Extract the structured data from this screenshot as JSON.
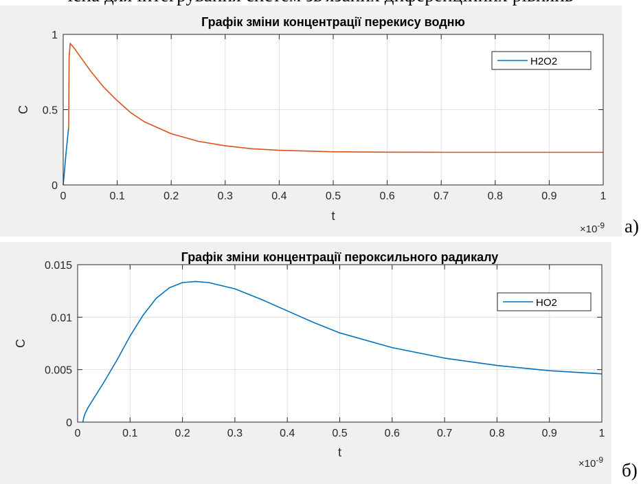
{
  "cut_text": "існа для інтегрування систем зв'язаних диференційних рівнянь",
  "panel_letters": {
    "a": "а)",
    "b": "б)"
  },
  "chart_data": [
    {
      "type": "line",
      "title": "Графік зміни концентрації перекису водню",
      "xlabel": "t",
      "ylabel": "C",
      "x_exponent_label": "×10",
      "x_exponent_power": "-9",
      "xlim": [
        0,
        1
      ],
      "ylim": [
        0,
        1
      ],
      "xticks": [
        0,
        0.1,
        0.2,
        0.3,
        0.4,
        0.5,
        0.6,
        0.7,
        0.8,
        0.9,
        1
      ],
      "xtick_labels": [
        "0",
        "0.1",
        "0.2",
        "0.3",
        "0.4",
        "0.5",
        "0.6",
        "0.7",
        "0.8",
        "0.9",
        "1"
      ],
      "yticks": [
        0,
        0.5,
        1
      ],
      "ytick_labels": [
        "0",
        "0.5",
        "1"
      ],
      "grid": true,
      "legend": {
        "position": "top-right",
        "entries": [
          "H2O2"
        ]
      },
      "colors": [
        "#0072bd",
        "#d95319"
      ],
      "series": [
        {
          "name": "H2O2",
          "x": [
            0,
            0.002,
            0.004,
            0.006,
            0.008,
            0.01
          ],
          "y": [
            0,
            0.08,
            0.16,
            0.24,
            0.31,
            0.38
          ]
        },
        {
          "x": [
            0.01,
            0.011,
            0.013,
            0.02,
            0.03,
            0.05,
            0.075,
            0.1,
            0.125,
            0.15,
            0.2,
            0.25,
            0.3,
            0.35,
            0.4,
            0.45,
            0.5,
            0.6,
            0.7,
            0.8,
            0.9,
            1.0
          ],
          "y": [
            0.38,
            0.85,
            0.94,
            0.91,
            0.86,
            0.76,
            0.65,
            0.56,
            0.48,
            0.42,
            0.34,
            0.29,
            0.26,
            0.24,
            0.23,
            0.225,
            0.22,
            0.218,
            0.217,
            0.217,
            0.217,
            0.217
          ]
        }
      ]
    },
    {
      "type": "line",
      "title": "Графік зміни концентрації пероксильного радикалу",
      "xlabel": "t",
      "ylabel": "C",
      "x_exponent_label": "×10",
      "x_exponent_power": "-9",
      "xlim": [
        0,
        1
      ],
      "ylim": [
        0,
        0.015
      ],
      "xticks": [
        0,
        0.1,
        0.2,
        0.3,
        0.4,
        0.5,
        0.6,
        0.7,
        0.8,
        0.9,
        1
      ],
      "xtick_labels": [
        "0",
        "0.1",
        "0.2",
        "0.3",
        "0.4",
        "0.5",
        "0.6",
        "0.7",
        "0.8",
        "0.9",
        "1"
      ],
      "yticks": [
        0,
        0.005,
        0.01,
        0.015
      ],
      "ytick_labels": [
        "0",
        "0.005",
        "0.01",
        "0.015"
      ],
      "grid": true,
      "legend": {
        "position": "top-right",
        "entries": [
          "HO2"
        ]
      },
      "colors": [
        "#0072bd"
      ],
      "series": [
        {
          "name": "HO2",
          "x": [
            0.01,
            0.012,
            0.015,
            0.02,
            0.03,
            0.05,
            0.075,
            0.1,
            0.125,
            0.15,
            0.175,
            0.2,
            0.225,
            0.25,
            0.3,
            0.35,
            0.4,
            0.45,
            0.5,
            0.6,
            0.7,
            0.8,
            0.9,
            1.0
          ],
          "y": [
            0,
            0.0005,
            0.0009,
            0.0014,
            0.0022,
            0.0038,
            0.0059,
            0.0082,
            0.0102,
            0.0118,
            0.0128,
            0.0133,
            0.0134,
            0.0133,
            0.0127,
            0.0117,
            0.0106,
            0.0095,
            0.0085,
            0.0071,
            0.0061,
            0.0054,
            0.0049,
            0.0046
          ]
        }
      ]
    }
  ]
}
